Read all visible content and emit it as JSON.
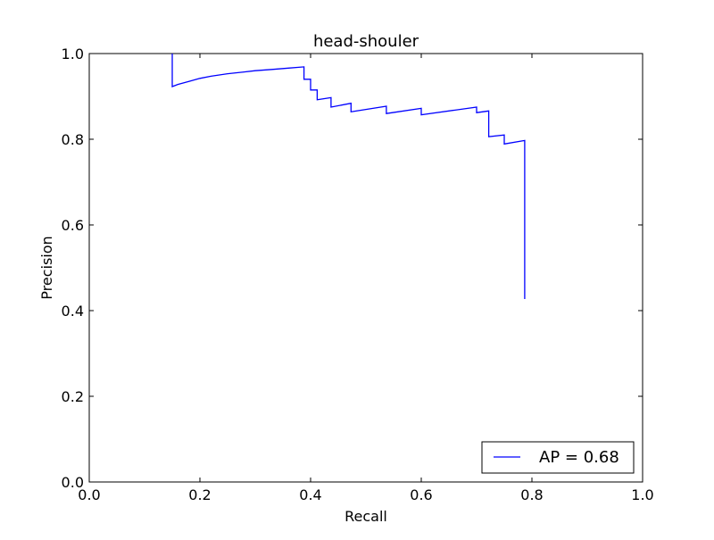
{
  "chart_data": {
    "type": "line",
    "title": "head-shouler",
    "xlabel": "Recall",
    "ylabel": "Precision",
    "xlim": [
      0.0,
      1.0
    ],
    "ylim": [
      0.0,
      1.0
    ],
    "xticks": [
      "0.0",
      "0.2",
      "0.4",
      "0.6",
      "0.8",
      "1.0"
    ],
    "yticks": [
      "0.0",
      "0.2",
      "0.4",
      "0.6",
      "0.8",
      "1.0"
    ],
    "grid": false,
    "legend_position": "lower-right",
    "series": [
      {
        "name": "AP = 0.68",
        "color": "#0000ff",
        "x": [
          0.15,
          0.15,
          0.16,
          0.18,
          0.2,
          0.22,
          0.25,
          0.28,
          0.3,
          0.33,
          0.36,
          0.388,
          0.388,
          0.4,
          0.4,
          0.412,
          0.412,
          0.437,
          0.437,
          0.473,
          0.473,
          0.537,
          0.537,
          0.6,
          0.6,
          0.7,
          0.7,
          0.722,
          0.722,
          0.75,
          0.75,
          0.787,
          0.787
        ],
        "y": [
          1.0,
          0.923,
          0.928,
          0.935,
          0.942,
          0.947,
          0.953,
          0.957,
          0.96,
          0.963,
          0.966,
          0.969,
          0.94,
          0.94,
          0.915,
          0.915,
          0.892,
          0.897,
          0.875,
          0.884,
          0.864,
          0.877,
          0.86,
          0.872,
          0.857,
          0.875,
          0.862,
          0.866,
          0.806,
          0.81,
          0.789,
          0.797,
          0.427
        ]
      }
    ]
  }
}
